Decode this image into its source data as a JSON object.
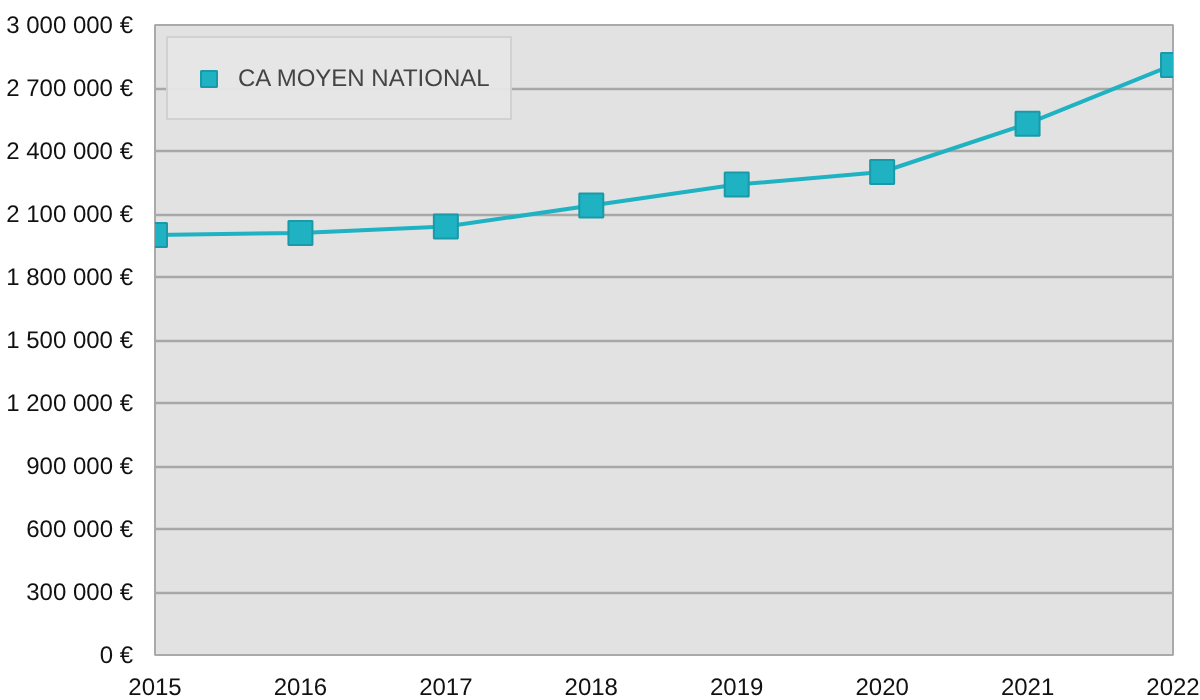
{
  "chart_data": {
    "type": "line",
    "x": [
      2015,
      2016,
      2017,
      2018,
      2019,
      2020,
      2021,
      2022
    ],
    "series": [
      {
        "name": "CA MOYEN NATIONAL",
        "color": "#1eb2c3",
        "values": [
          2000000,
          2010000,
          2040000,
          2140000,
          2240000,
          2300000,
          2530000,
          2810000
        ]
      }
    ],
    "xlim": [
      2015,
      2022
    ],
    "xticks": [
      2015,
      2016,
      2017,
      2018,
      2019,
      2020,
      2021,
      2022
    ],
    "ylim": [
      0,
      3000000
    ],
    "yticks": [
      {
        "value": 0,
        "label": "0 €"
      },
      {
        "value": 300000,
        "label": "300 000 €"
      },
      {
        "value": 600000,
        "label": "600 000 €"
      },
      {
        "value": 900000,
        "label": "900 000 €"
      },
      {
        "value": 1200000,
        "label": "1 200 000 €"
      },
      {
        "value": 1500000,
        "label": "1 500 000 €"
      },
      {
        "value": 1800000,
        "label": "1 800 000 €"
      },
      {
        "value": 2100000,
        "label": "2 100 000 €"
      },
      {
        "value": 2400000,
        "label": "2 400 000 €"
      },
      {
        "value": 2700000,
        "label": "2 700 000 €"
      },
      {
        "value": 3000000,
        "label": "3 000 000 €"
      }
    ],
    "grid": "y",
    "legend": "top left",
    "marker": "square",
    "line_style": "solid"
  }
}
